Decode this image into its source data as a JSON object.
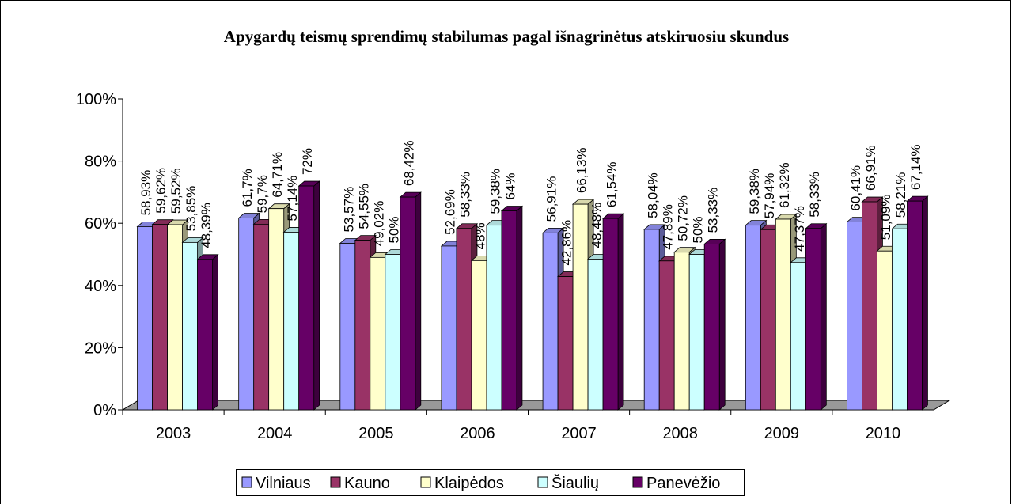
{
  "chart_data": {
    "type": "bar3d",
    "title": "Apygardų teismų sprendimų stabilumas pagal išnagrinėtus atskiruosiu skundus",
    "categories": [
      "2003",
      "2004",
      "2005",
      "2006",
      "2007",
      "2008",
      "2009",
      "2010"
    ],
    "ylim": [
      0,
      100
    ],
    "yticks": [
      {
        "value": 0,
        "label": "0%"
      },
      {
        "value": 20,
        "label": "20%"
      },
      {
        "value": 40,
        "label": "40%"
      },
      {
        "value": 60,
        "label": "60%"
      },
      {
        "value": 80,
        "label": "80%"
      },
      {
        "value": 100,
        "label": "100%"
      }
    ],
    "legend": "bottom",
    "series": [
      {
        "name": "Vilniaus",
        "color": "#9999ff",
        "values": [
          58.93,
          61.7,
          53.57,
          52.69,
          56.91,
          58.04,
          59.38,
          60.41
        ],
        "value_labels": [
          "58,93%",
          "61,7%",
          "53,57%",
          "52,69%",
          "56,91%",
          "58,04%",
          "59,38%",
          "60,41%"
        ]
      },
      {
        "name": "Kauno",
        "color": "#993366",
        "values": [
          59.62,
          59.7,
          54.55,
          58.33,
          42.86,
          47.89,
          57.94,
          66.91
        ],
        "value_labels": [
          "59,62%",
          "59,7%",
          "54,55%",
          "58,33%",
          "42,86%",
          "47,89%",
          "57,94%",
          "66,91%"
        ]
      },
      {
        "name": "Klaipėdos",
        "color": "#ffffcc",
        "values": [
          59.52,
          64.71,
          49.02,
          48,
          66.13,
          50.72,
          61.32,
          51.09
        ],
        "value_labels": [
          "59,52%",
          "64,71%",
          "49,02%",
          "48%",
          "66,13%",
          "50,72%",
          "61,32%",
          "51,09%"
        ]
      },
      {
        "name": "Šiaulių",
        "color": "#ccffff",
        "values": [
          53.85,
          57.14,
          50,
          59.38,
          48.48,
          50,
          47.37,
          58.21
        ],
        "value_labels": [
          "53,85%",
          "57,14%",
          "50%",
          "59,38%",
          "48,48%",
          "50%",
          "47,37%",
          "58,21%"
        ]
      },
      {
        "name": "Panevėžio",
        "color": "#660066",
        "values": [
          48.39,
          72,
          68.42,
          64,
          61.54,
          53.33,
          58.33,
          67.14
        ],
        "value_labels": [
          "48,39%",
          "72%",
          "68,42%",
          "64%",
          "61,54%",
          "53,33%",
          "58,33%",
          "67,14%"
        ]
      }
    ]
  }
}
